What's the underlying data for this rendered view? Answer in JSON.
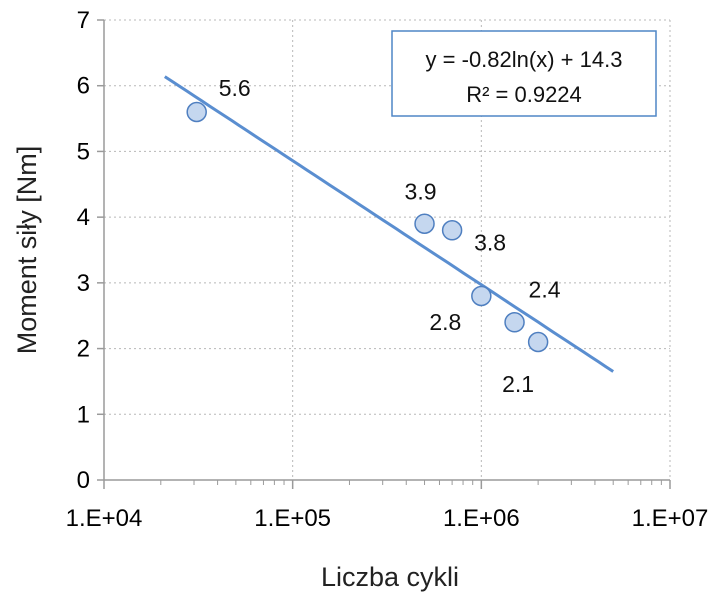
{
  "chart_data": {
    "type": "scatter",
    "xlabel": "Liczba cykli",
    "ylabel": "Moment siły [Nm]",
    "x_scale": "log",
    "xlim": [
      10000,
      10000000
    ],
    "ylim": [
      0,
      7
    ],
    "x_tick_values": [
      10000,
      100000,
      1000000,
      10000000
    ],
    "x_tick_labels": [
      "1.E+04",
      "1.E+05",
      "1.E+06",
      "1.E+07"
    ],
    "y_tick_values": [
      0,
      1,
      2,
      3,
      4,
      5,
      6,
      7
    ],
    "y_tick_labels": [
      "0",
      "1",
      "2",
      "3",
      "4",
      "5",
      "6",
      "7"
    ],
    "grid": true,
    "points": [
      {
        "x": 31000,
        "y": 5.6,
        "label": "5.6"
      },
      {
        "x": 500000,
        "y": 3.9,
        "label": "3.9"
      },
      {
        "x": 700000,
        "y": 3.8,
        "label": "3.8"
      },
      {
        "x": 1000000,
        "y": 2.8,
        "label": "2.8"
      },
      {
        "x": 1500000,
        "y": 2.4,
        "label": "2.4"
      },
      {
        "x": 2000000,
        "y": 2.1,
        "label": "2.1"
      }
    ],
    "trendline": {
      "type": "logarithmic",
      "a": -0.82,
      "b": 14.3,
      "x_range": [
        21000,
        5000000
      ],
      "equation_label": "y = -0.82ln(x) + 14.3",
      "r2_label": "R² = 0.9224"
    },
    "colors": {
      "marker_fill": "#c5d7ef",
      "marker_stroke": "#4f7fc0",
      "trendline": "#5a8ed0",
      "grid": "#b8b8b8",
      "axis": "#9a9a9a",
      "equation_border": "#4f86c6"
    }
  }
}
